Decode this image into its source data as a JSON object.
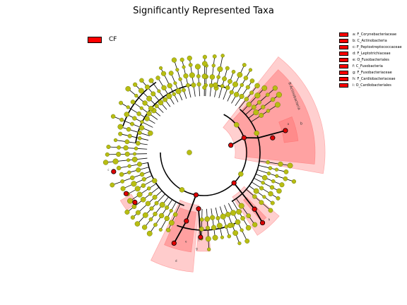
{
  "title": "Significantly Represented Taxa",
  "legend_group": {
    "label": "CF",
    "color": "#ff0000"
  },
  "colors": {
    "node_default": "#b8bd12",
    "node_enriched": "#e00000",
    "highlight": "#ff6060",
    "edge": "#000000"
  },
  "legend_taxa": [
    "a: F_Corynebacteriaceae",
    "b: C_Actinobacteria",
    "c: F_Peptostreptococcaceae",
    "d: F_Leptotrichiaceae",
    "e: O_Fusobacteriales",
    "f: C_Fusobacteria",
    "g: F_Fusobacteriaceae",
    "h: F_Cardiobacteriaceae",
    "i: O_Cardiobacteriales"
  ],
  "clade_labels": {
    "b_full": "B:Actinobacteria",
    "b": "b",
    "a": "a",
    "c": "c",
    "d": "d",
    "e": "e",
    "f": "f",
    "g": "g",
    "h": "h",
    "i": "i"
  }
}
